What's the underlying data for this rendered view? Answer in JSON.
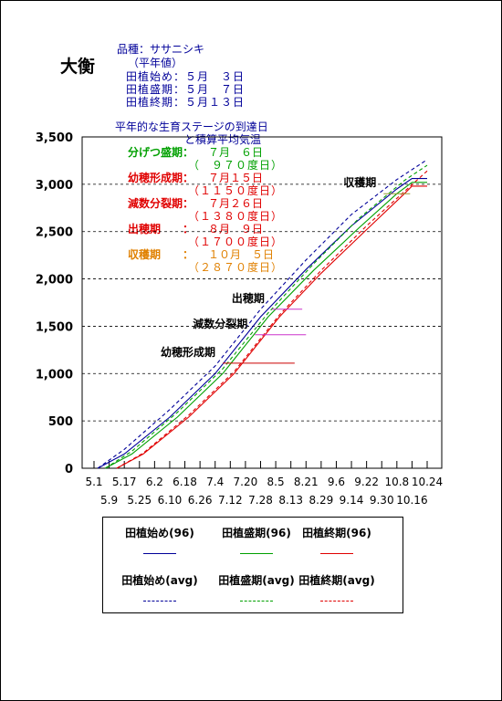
{
  "place": "大衡",
  "info": {
    "variety": "品種：ササニシキ",
    "avg_note": "（平年値）",
    "plant_start": "田植始め：５月　３日",
    "plant_peak": "田植盛期：５月　７日",
    "plant_end": "田植終期：５月１３日"
  },
  "stages_heading": "平年的な生育ステージの到達日",
  "stages_heading2": "と積算平均気温",
  "stages": [
    {
      "name": "分げつ盛期：",
      "date": "７月　６日",
      "value": "（　９７０度日）",
      "color": "#00a000"
    },
    {
      "name": "幼穂形成期：",
      "date": "７月１５日",
      "value": "（１１５０度日）",
      "color": "#e00000"
    },
    {
      "name": "減数分裂期：",
      "date": "７月２６日",
      "value": "（１３８０度日）",
      "color": "#e00000"
    },
    {
      "name": "出穂期　　：",
      "date": "８月　９日",
      "value": "（１７００度日）",
      "color": "#e00000"
    },
    {
      "name": "収穫期　　：",
      "date": "１０月　５日",
      "value": "（２８７０度日）",
      "color": "#e08000"
    }
  ],
  "colors": {
    "blue": "#000099",
    "green": "#00a000",
    "red": "#e00000",
    "darkred": "#cc0000",
    "magenta": "#cc33cc",
    "olive": "#999933"
  },
  "chart_data": {
    "type": "line",
    "y_ticks": [
      "0",
      "500",
      "1,000",
      "1,500",
      "2,000",
      "2,500",
      "3,000",
      "3,500"
    ],
    "ylim": [
      0,
      3500
    ],
    "x_labels_top": [
      "5.1",
      "5.17",
      "6.2",
      "6.18",
      "7.4",
      "7.20",
      "8.5",
      "8.21",
      "9.6",
      "9.22",
      "10.8",
      "10.24"
    ],
    "x_labels_bottom": [
      "5.9",
      "5.25",
      "6.10",
      "6.26",
      "7.12",
      "7.28",
      "8.13",
      "8.29",
      "9.14",
      "9.30",
      "10.16"
    ],
    "grid_y": true,
    "series": [
      {
        "name": "田植始め(96)",
        "key": "blue",
        "dash": false,
        "points": [
          [
            "5.3",
            0
          ],
          [
            "5.17",
            150
          ],
          [
            "6.10",
            540
          ],
          [
            "7.4",
            1000
          ],
          [
            "7.28",
            1600
          ],
          [
            "8.21",
            2100
          ],
          [
            "9.14",
            2560
          ],
          [
            "10.8",
            2950
          ],
          [
            "10.16",
            3060
          ],
          [
            "10.24",
            3060
          ]
        ]
      },
      {
        "name": "田植盛期(96)",
        "key": "green",
        "dash": false,
        "points": [
          [
            "5.7",
            0
          ],
          [
            "5.21",
            150
          ],
          [
            "6.14",
            540
          ],
          [
            "7.8",
            1000
          ],
          [
            "8.1",
            1600
          ],
          [
            "8.25",
            2090
          ],
          [
            "9.18",
            2540
          ],
          [
            "10.8",
            2900
          ],
          [
            "10.16",
            3020
          ],
          [
            "10.24",
            3020
          ]
        ]
      },
      {
        "name": "田植終期(96)",
        "key": "red",
        "dash": false,
        "points": [
          [
            "5.13",
            0
          ],
          [
            "5.27",
            150
          ],
          [
            "6.20",
            540
          ],
          [
            "7.14",
            1000
          ],
          [
            "8.7",
            1600
          ],
          [
            "8.29",
            2060
          ],
          [
            "9.22",
            2520
          ],
          [
            "10.12",
            2900
          ],
          [
            "10.16",
            2980
          ],
          [
            "10.24",
            2980
          ]
        ]
      },
      {
        "name": "田植始め(avg)",
        "key": "blue",
        "dash": true,
        "points": [
          [
            "5.3",
            0
          ],
          [
            "5.17",
            200
          ],
          [
            "6.10",
            620
          ],
          [
            "7.4",
            1080
          ],
          [
            "7.28",
            1680
          ],
          [
            "8.21",
            2200
          ],
          [
            "9.14",
            2680
          ],
          [
            "10.8",
            3050
          ],
          [
            "10.24",
            3260
          ]
        ]
      },
      {
        "name": "田植盛期(avg)",
        "key": "green",
        "dash": true,
        "points": [
          [
            "5.7",
            0
          ],
          [
            "5.21",
            180
          ],
          [
            "6.14",
            590
          ],
          [
            "7.8",
            1050
          ],
          [
            "8.1",
            1640
          ],
          [
            "8.25",
            2160
          ],
          [
            "9.18",
            2640
          ],
          [
            "10.12",
            3040
          ],
          [
            "10.24",
            3200
          ]
        ]
      },
      {
        "name": "田植終期(avg)",
        "key": "red",
        "dash": true,
        "points": [
          [
            "5.13",
            0
          ],
          [
            "5.27",
            160
          ],
          [
            "6.20",
            560
          ],
          [
            "7.14",
            1020
          ],
          [
            "8.7",
            1620
          ],
          [
            "8.29",
            2090
          ],
          [
            "9.22",
            2560
          ],
          [
            "10.14",
            2960
          ],
          [
            "10.24",
            3140
          ]
        ]
      }
    ],
    "markers": [
      {
        "label": "収穫期",
        "y": 2900,
        "from": "10.1",
        "to": "10.15",
        "color_key": "olive"
      },
      {
        "label": "出穂期",
        "y": 1680,
        "from": "8.3",
        "to": "8.19",
        "color_key": "magenta"
      },
      {
        "label": "減数分裂期",
        "y": 1410,
        "from": "7.25",
        "to": "8.21",
        "color_key": "magenta"
      },
      {
        "label": "幼穂形成期",
        "y": 1110,
        "from": "7.8",
        "to": "8.15",
        "color_key": "darkred"
      }
    ]
  },
  "legend": [
    {
      "label": "田植始め(96)",
      "key": "blue",
      "dash": false
    },
    {
      "label": "田植盛期(96)",
      "key": "green",
      "dash": false
    },
    {
      "label": "田植終期(96)",
      "key": "red",
      "dash": false
    },
    {
      "label": "田植始め(avg)",
      "key": "blue",
      "dash": true
    },
    {
      "label": "田植盛期(avg)",
      "key": "green",
      "dash": true
    },
    {
      "label": "田植終期(avg)",
      "key": "red",
      "dash": true
    }
  ]
}
